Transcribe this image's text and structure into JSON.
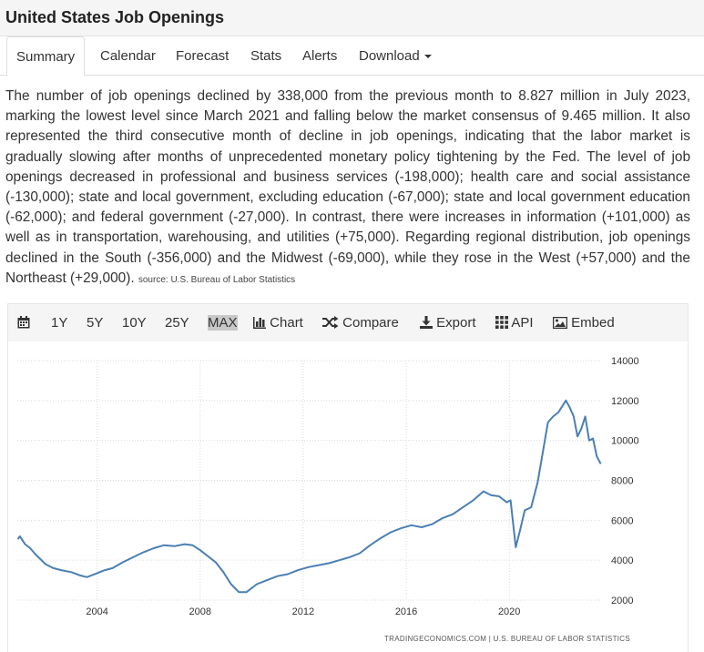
{
  "page": {
    "title": "United States Job Openings"
  },
  "tabs": [
    {
      "label": "Summary",
      "active": true
    },
    {
      "label": "Calendar"
    },
    {
      "label": "Forecast"
    },
    {
      "label": "Stats"
    },
    {
      "label": "Alerts"
    },
    {
      "label": "Download"
    }
  ],
  "summary": {
    "text": "The number of job openings declined by 338,000 from the previous month to 8.827 million in July 2023, marking the lowest level since March 2021 and falling below the market consensus of 9.465 million. It also represented the third consecutive month of decline in job openings, indicating that the labor market is gradually slowing after months of unprecedented monetary policy tightening by the Fed. The level of job openings decreased in professional and business services (-198,000); health care and social assistance (-130,000); state and local government, excluding education (-67,000); state and local government education (-62,000); and federal government (-27,000). In contrast, there were increases in information (+101,000) as well as in transportation, warehousing, and utilities (+75,000). Regarding regional distribution, job openings declined in the South (-356,000) and the Midwest (-69,000), while they rose in the West (+57,000) and the Northeast (+29,000).",
    "source": "source: U.S. Bureau of Labor Statistics"
  },
  "toolbar": {
    "calendar_icon": "calendar-icon",
    "ranges": [
      "1Y",
      "5Y",
      "10Y",
      "25Y",
      "MAX"
    ],
    "chart_label": "Chart",
    "compare_label": "Compare",
    "export_label": "Export",
    "api_label": "API",
    "embed_label": "Embed"
  },
  "credit": "TRADINGECONOMICS.COM  |  U.S. BUREAU OF LABOR STATISTICS",
  "colors": {
    "line": "#4a7fb5",
    "grid": "#d9d9d9",
    "toolbar_bg": "#f5f5f5"
  },
  "chart_data": {
    "type": "line",
    "title": "",
    "xlabel": "",
    "ylabel": "",
    "x_ticks": [
      "2004",
      "2008",
      "2012",
      "2016",
      "2020"
    ],
    "y_ticks": [
      2000,
      4000,
      6000,
      8000,
      10000,
      12000,
      14000
    ],
    "xlim": [
      2000.9,
      2023.6
    ],
    "ylim": [
      2000,
      14000
    ],
    "grid": true,
    "y_axis_position": "right",
    "series": [
      {
        "values": [
          [
            2000.92,
            5050
          ],
          [
            2001.0,
            5200
          ],
          [
            2001.2,
            4800
          ],
          [
            2001.4,
            4600
          ],
          [
            2001.6,
            4300
          ],
          [
            2001.8,
            4050
          ],
          [
            2002.0,
            3800
          ],
          [
            2002.3,
            3600
          ],
          [
            2002.6,
            3500
          ],
          [
            2003.0,
            3400
          ],
          [
            2003.3,
            3250
          ],
          [
            2003.6,
            3150
          ],
          [
            2004.0,
            3350
          ],
          [
            2004.3,
            3500
          ],
          [
            2004.6,
            3600
          ],
          [
            2005.0,
            3900
          ],
          [
            2005.4,
            4150
          ],
          [
            2005.8,
            4400
          ],
          [
            2006.2,
            4600
          ],
          [
            2006.6,
            4750
          ],
          [
            2007.0,
            4700
          ],
          [
            2007.4,
            4800
          ],
          [
            2007.7,
            4750
          ],
          [
            2008.0,
            4500
          ],
          [
            2008.3,
            4200
          ],
          [
            2008.6,
            3900
          ],
          [
            2008.9,
            3400
          ],
          [
            2009.2,
            2800
          ],
          [
            2009.5,
            2400
          ],
          [
            2009.8,
            2400
          ],
          [
            2010.2,
            2800
          ],
          [
            2010.6,
            3000
          ],
          [
            2011.0,
            3200
          ],
          [
            2011.4,
            3300
          ],
          [
            2011.8,
            3500
          ],
          [
            2012.2,
            3650
          ],
          [
            2012.6,
            3750
          ],
          [
            2013.0,
            3850
          ],
          [
            2013.4,
            4000
          ],
          [
            2013.8,
            4150
          ],
          [
            2014.2,
            4350
          ],
          [
            2014.6,
            4750
          ],
          [
            2015.0,
            5100
          ],
          [
            2015.4,
            5400
          ],
          [
            2015.8,
            5600
          ],
          [
            2016.2,
            5750
          ],
          [
            2016.6,
            5650
          ],
          [
            2017.0,
            5800
          ],
          [
            2017.4,
            6100
          ],
          [
            2017.8,
            6300
          ],
          [
            2018.2,
            6650
          ],
          [
            2018.6,
            7000
          ],
          [
            2019.0,
            7450
          ],
          [
            2019.3,
            7250
          ],
          [
            2019.6,
            7200
          ],
          [
            2019.9,
            6900
          ],
          [
            2020.05,
            7000
          ],
          [
            2020.25,
            4650
          ],
          [
            2020.4,
            5400
          ],
          [
            2020.6,
            6500
          ],
          [
            2020.85,
            6650
          ],
          [
            2021.1,
            7900
          ],
          [
            2021.3,
            9400
          ],
          [
            2021.5,
            10900
          ],
          [
            2021.7,
            11200
          ],
          [
            2021.9,
            11400
          ],
          [
            2022.05,
            11700
          ],
          [
            2022.2,
            12000
          ],
          [
            2022.35,
            11650
          ],
          [
            2022.5,
            11200
          ],
          [
            2022.65,
            10200
          ],
          [
            2022.8,
            10600
          ],
          [
            2022.95,
            11200
          ],
          [
            2023.1,
            10000
          ],
          [
            2023.25,
            10100
          ],
          [
            2023.4,
            9200
          ],
          [
            2023.55,
            8827
          ]
        ]
      }
    ]
  }
}
